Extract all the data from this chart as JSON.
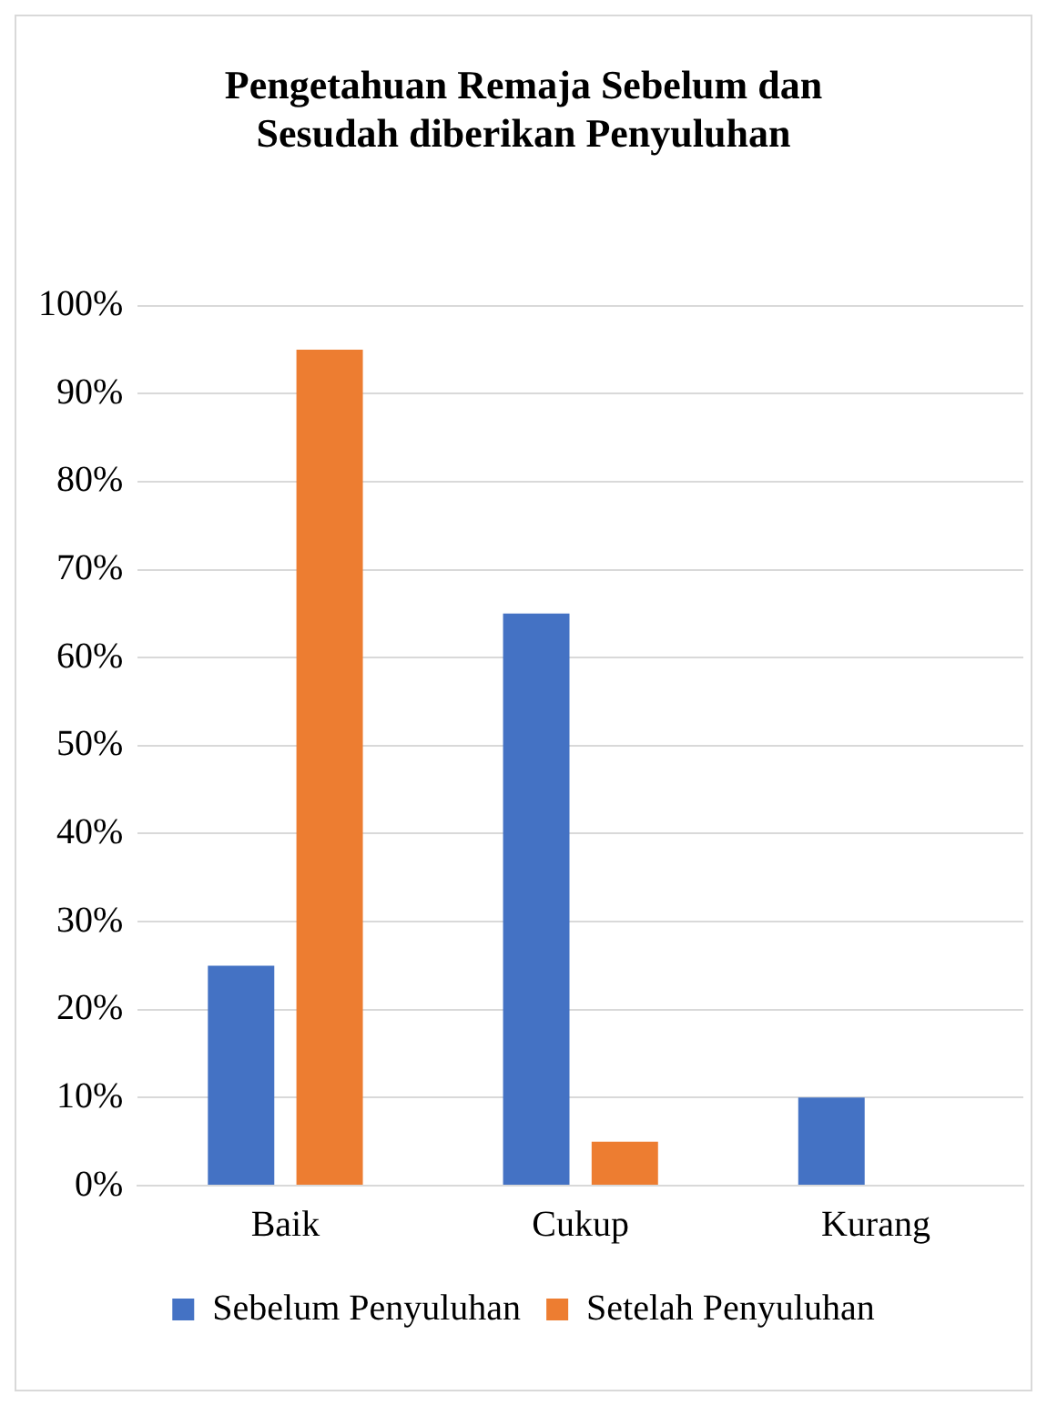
{
  "chart_data": {
    "type": "bar",
    "title": "Pengetahuan Remaja Sebelum dan Sesudah diberikan Penyuluhan",
    "categories": [
      "Baik",
      "Cukup",
      "Kurang"
    ],
    "series": [
      {
        "name": "Sebelum Penyuluhan",
        "color": "#4472c4",
        "values": [
          25,
          65,
          10
        ]
      },
      {
        "name": "Setelah Penyuluhan",
        "color": "#ed7d31",
        "values": [
          95,
          5,
          0
        ]
      }
    ],
    "ylim": [
      0,
      100
    ],
    "yticks": [
      {
        "value": 0,
        "label": "0%"
      },
      {
        "value": 10,
        "label": "10%"
      },
      {
        "value": 20,
        "label": "20%"
      },
      {
        "value": 30,
        "label": "30%"
      },
      {
        "value": 40,
        "label": "40%"
      },
      {
        "value": 50,
        "label": "50%"
      },
      {
        "value": 60,
        "label": "60%"
      },
      {
        "value": 70,
        "label": "70%"
      },
      {
        "value": 80,
        "label": "80%"
      },
      {
        "value": 90,
        "label": "90%"
      },
      {
        "value": 100,
        "label": "100%"
      }
    ],
    "grid": "y",
    "legend": "bottom"
  }
}
